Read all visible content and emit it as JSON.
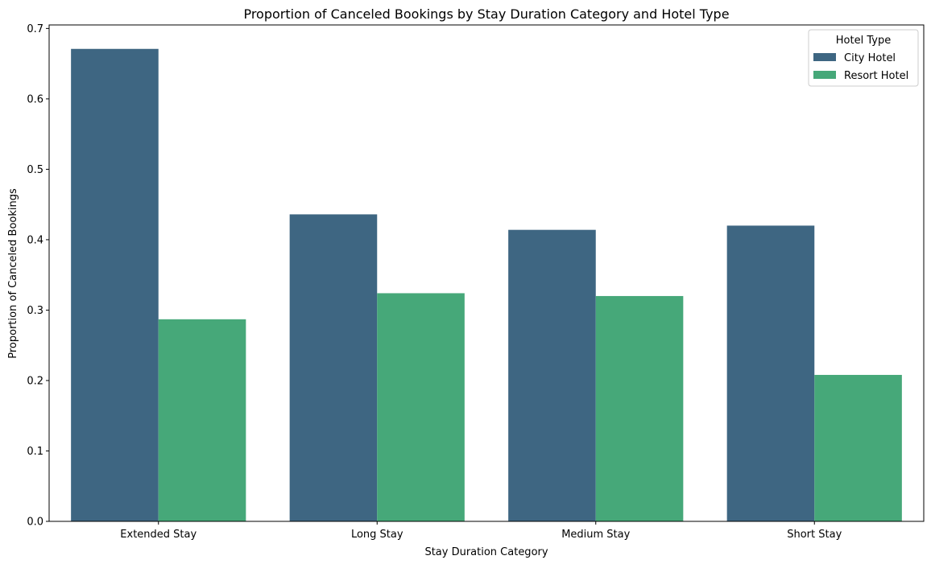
{
  "chart_data": {
    "type": "bar",
    "title": "Proportion of Canceled Bookings by Stay Duration Category and Hotel Type",
    "xlabel": "Stay Duration Category",
    "ylabel": "Proportion of Canceled Bookings",
    "categories": [
      "Extended Stay",
      "Long Stay",
      "Medium Stay",
      "Short Stay"
    ],
    "series": [
      {
        "name": "City Hotel",
        "color": "#3e6682",
        "values": [
          0.671,
          0.436,
          0.414,
          0.42
        ]
      },
      {
        "name": "Resort Hotel",
        "color": "#46a879",
        "values": [
          0.287,
          0.324,
          0.32,
          0.208
        ]
      }
    ],
    "ylim": [
      0,
      0.705
    ],
    "yticks": [
      "0.0",
      "0.1",
      "0.2",
      "0.3",
      "0.4",
      "0.5",
      "0.6",
      "0.7"
    ],
    "grid": false,
    "legend": {
      "title": "Hotel Type",
      "position": "top-right"
    }
  }
}
